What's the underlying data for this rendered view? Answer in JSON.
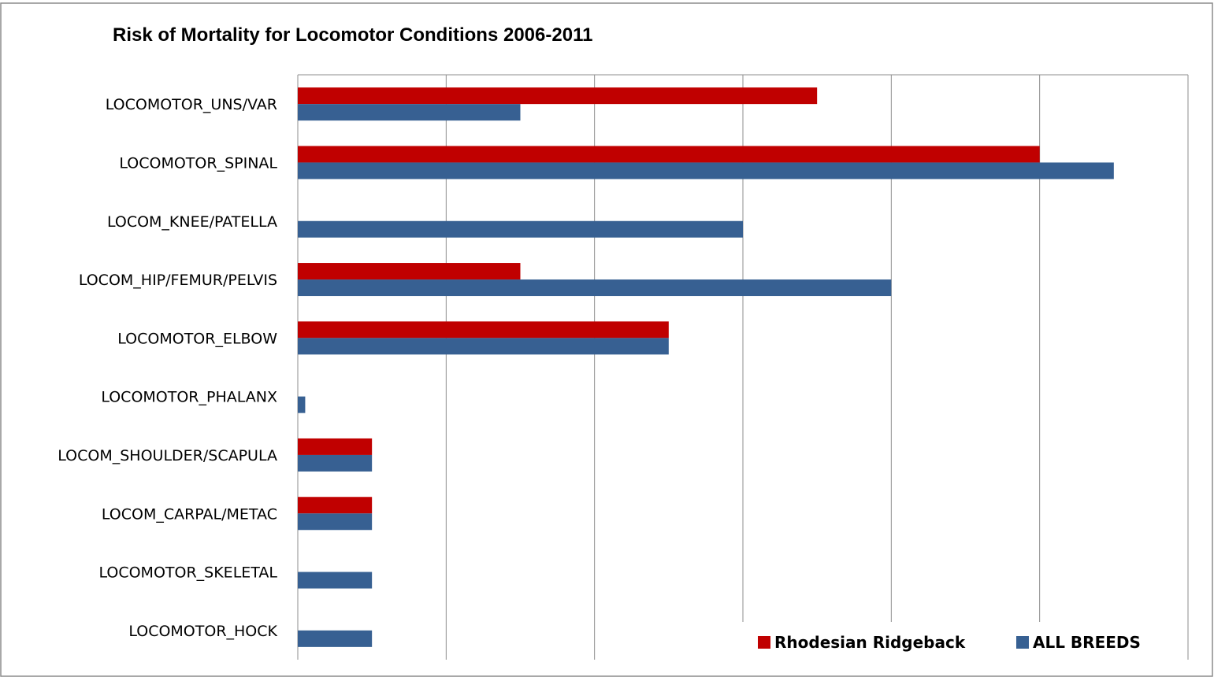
{
  "chart_data": {
    "type": "bar",
    "orientation": "horizontal",
    "title": "Risk of Mortality for Locomotor Conditions 2006-2011",
    "xlabel": "",
    "ylabel": "",
    "xlim": [
      0,
      6
    ],
    "grid": true,
    "legend_position": "bottom-right",
    "categories": [
      "LOCOMOTOR_UNS/VAR",
      "LOCOMOTOR_SPINAL",
      "LOCOM_KNEE/PATELLA",
      "LOCOM_HIP/FEMUR/PELVIS",
      "LOCOMOTOR_ELBOW",
      "LOCOMOTOR_PHALANX",
      "LOCOM_SHOULDER/SCAPULA",
      "LOCOM_CARPAL/METAC",
      "LOCOMOTOR_SKELETAL",
      "LOCOMOTOR_HOCK"
    ],
    "series": [
      {
        "name": "Rhodesian Ridgeback",
        "color": "#c00000",
        "values": [
          3.5,
          5.0,
          0,
          1.5,
          2.5,
          0,
          0.5,
          0.5,
          0,
          0
        ]
      },
      {
        "name": "ALL BREEDS",
        "color": "#376092",
        "values": [
          1.5,
          5.5,
          3.0,
          4.0,
          2.5,
          0.05,
          0.5,
          0.5,
          0.5,
          0.5
        ]
      }
    ]
  }
}
